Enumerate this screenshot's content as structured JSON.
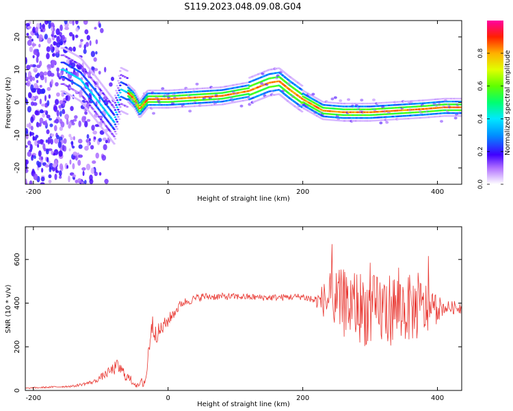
{
  "title": "S119.2023.048.09.08.G04",
  "chart_data": [
    {
      "type": "heatmap",
      "xlabel": "Height of straight line (km)",
      "ylabel": "Frequency (Hz)",
      "xlim": [
        -212,
        436
      ],
      "ylim": [
        -25,
        25
      ],
      "xticks": [
        -200,
        0,
        200,
        400
      ],
      "yticks": [
        -20,
        -10,
        0,
        10,
        20
      ],
      "colorbar": {
        "label": "Normalized spectral amplitude",
        "range": [
          0,
          1
        ],
        "ticks": [
          "0.0",
          "0.2",
          "0.4",
          "0.6",
          "0.8"
        ],
        "colormap": "gist_ncar-like (white → purple → blue → cyan → green → yellow → orange → red → pink)"
      },
      "ridge": {
        "x": [
          -155,
          -130,
          -110,
          -95,
          -80,
          -70,
          -60,
          -50,
          -42,
          -30,
          0,
          40,
          80,
          120,
          150,
          165,
          180,
          200,
          230,
          260,
          300,
          340,
          380,
          410,
          436
        ],
        "y": [
          10,
          7,
          2,
          -2,
          -6,
          4,
          3,
          1,
          -2,
          1,
          1,
          1.5,
          2,
          3.5,
          6,
          6.5,
          4,
          1,
          -2.5,
          -3,
          -3,
          -2.5,
          -2,
          -1.5,
          -1.5
        ]
      }
    },
    {
      "type": "line",
      "xlabel": "Height of straight line (km)",
      "ylabel": "SNR (10 * v/v)",
      "xlim": [
        -212,
        436
      ],
      "ylim": [
        0,
        750
      ],
      "xticks": [
        -200,
        0,
        200,
        400
      ],
      "yticks": [
        0,
        200,
        400,
        600
      ],
      "color": "#e8342e",
      "envelope": {
        "x": [
          -212,
          -140,
          -110,
          -90,
          -75,
          -60,
          -45,
          -33,
          -25,
          -15,
          0,
          20,
          50,
          100,
          150,
          200,
          220,
          240,
          260,
          280,
          300,
          340,
          380,
          410,
          436
        ],
        "y": [
          10,
          20,
          40,
          80,
          110,
          60,
          20,
          50,
          300,
          260,
          320,
          400,
          430,
          430,
          425,
          430,
          410,
          420,
          400,
          390,
          360,
          380,
          370,
          380,
          380
        ],
        "noise": [
          3,
          5,
          10,
          20,
          35,
          25,
          10,
          40,
          60,
          45,
          30,
          20,
          18,
          15,
          15,
          15,
          30,
          120,
          160,
          170,
          170,
          170,
          140,
          30,
          30
        ]
      }
    }
  ]
}
